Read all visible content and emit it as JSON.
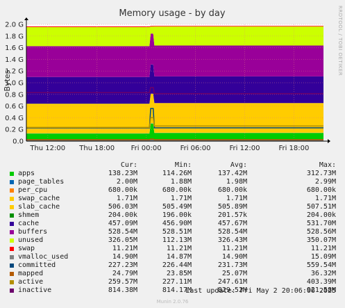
{
  "chart_data": {
    "type": "area",
    "title": "Memory usage - by day",
    "ylabel": "Bytes",
    "side_label": "RRDTOOL / TOBI OETIKER",
    "y_ticks": [
      "0.0",
      "0.2 G",
      "0.4 G",
      "0.6 G",
      "0.8 G",
      "1.0 G",
      "1.2 G",
      "1.4 G",
      "1.6 G",
      "1.8 G",
      "2.0 G"
    ],
    "ylim": [
      0,
      2.0
    ],
    "x_ticks": [
      "Thu 12:00",
      "Thu 18:00",
      "Fri 00:00",
      "Fri 06:00",
      "Fri 12:00",
      "Fri 18:00"
    ],
    "x_tick_hours": [
      12,
      18,
      24,
      30,
      36,
      42
    ],
    "xlim_hours": [
      9.4,
      45.6
    ],
    "spike_hour": 24.7,
    "grid": true,
    "columns": [
      "Cur:",
      "Min:",
      "Avg:",
      "Max:"
    ],
    "series": [
      {
        "name": "apps",
        "color": "#00cc00",
        "kind": "area",
        "cur": "138.23M",
        "min": "114.26M",
        "avg": "137.42M",
        "max": "312.73M",
        "before": 0.13,
        "after": 0.14,
        "peak": 0.3
      },
      {
        "name": "page_tables",
        "color": "#0066b3",
        "kind": "area",
        "cur": "2.00M",
        "min": "1.88M",
        "avg": "1.98M",
        "max": "2.99M",
        "before": 0.002,
        "after": 0.002,
        "peak": 0.003
      },
      {
        "name": "per_cpu",
        "color": "#ff8000",
        "kind": "area",
        "cur": "680.00k",
        "min": "680.00k",
        "avg": "680.00k",
        "max": "680.00k",
        "before": 0.001,
        "after": 0.001,
        "peak": 0.001
      },
      {
        "name": "swap_cache",
        "color": "#ffcc00",
        "kind": "area",
        "cur": "1.71M",
        "min": "1.71M",
        "avg": "1.71M",
        "max": "1.71M",
        "before": 0.002,
        "after": 0.002,
        "peak": 0.002
      },
      {
        "name": "slab_cache",
        "color": "#ffcc00",
        "kind": "area",
        "cur": "506.03M",
        "min": "505.49M",
        "avg": "505.89M",
        "max": "507.51M",
        "before": 0.506,
        "after": 0.506,
        "peak": 0.507
      },
      {
        "name": "shmem",
        "color": "#008f00",
        "kind": "area",
        "cur": "204.00k",
        "min": "196.00k",
        "avg": "201.57k",
        "max": "204.00k",
        "before": 0.0002,
        "after": 0.0002,
        "peak": 0.0002
      },
      {
        "name": "cache",
        "color": "#330099",
        "kind": "area",
        "cur": "457.09M",
        "min": "456.90M",
        "avg": "457.67M",
        "max": "531.70M",
        "before": 0.457,
        "after": 0.457,
        "peak": 0.5
      },
      {
        "name": "buffers",
        "color": "#990099",
        "kind": "area",
        "cur": "528.54M",
        "min": "528.51M",
        "avg": "528.54M",
        "max": "528.56M",
        "before": 0.5285,
        "after": 0.5285,
        "peak": 0.5285
      },
      {
        "name": "unused",
        "color": "#ccff00",
        "kind": "area",
        "cur": "326.05M",
        "min": "112.13M",
        "avg": "326.43M",
        "max": "350.07M",
        "before": 0.326,
        "after": 0.326,
        "peak": 0.12
      },
      {
        "name": "swap",
        "color": "#ff0000",
        "kind": "area",
        "cur": "11.21M",
        "min": "11.21M",
        "avg": "11.21M",
        "max": "11.21M",
        "before": 0.0112,
        "after": 0.0112,
        "peak": 0.0112
      },
      {
        "name": "vmalloc_used",
        "color": "#808080",
        "kind": "line",
        "cur": "14.90M",
        "min": "14.87M",
        "avg": "14.90M",
        "max": "15.09M",
        "before": 0.0149,
        "after": 0.0149,
        "peak": 0.0151
      },
      {
        "name": "committed",
        "color": "#00487d",
        "kind": "line",
        "cur": "227.23M",
        "min": "226.44M",
        "avg": "231.73M",
        "max": "559.54M",
        "before": 0.227,
        "after": 0.227,
        "peak": 0.56
      },
      {
        "name": "mapped",
        "color": "#b35a00",
        "kind": "line",
        "cur": "24.79M",
        "min": "23.85M",
        "avg": "25.07M",
        "max": "36.32M",
        "before": 0.0248,
        "after": 0.0248,
        "peak": 0.0363
      },
      {
        "name": "active",
        "color": "#b38f00",
        "kind": "line",
        "cur": "259.57M",
        "min": "227.11M",
        "avg": "247.61M",
        "max": "403.39M",
        "before": 0.235,
        "after": 0.26,
        "peak": 0.403
      },
      {
        "name": "inactive",
        "color": "#6b006b",
        "kind": "line",
        "cur": "814.38M",
        "min": "814.17M",
        "avg": "829.52M",
        "max": "921.58M",
        "before": 0.83,
        "after": 0.814,
        "peak": 0.92
      }
    ]
  },
  "footer": {
    "last_update": "Last update: Fri May  2 20:06:06 2025",
    "generator": "Munin 2.0.76"
  }
}
